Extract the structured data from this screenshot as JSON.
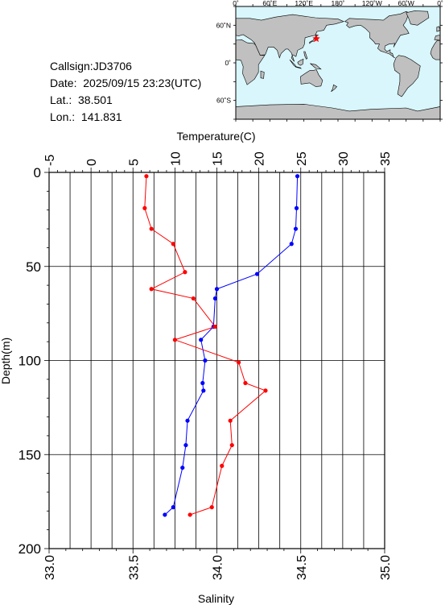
{
  "station": {
    "callsign_text": "Callsign:JD3706",
    "date_text": "Date:  2025/09/15 23:23(UTC)",
    "lat_text": "Lat.:  38.501",
    "lon_text": "Lon.:  141.831"
  },
  "map": {
    "lon_tick_labels": [
      "0˚",
      "60˚E",
      "120˚E",
      "180˚",
      "120˚W",
      "60˚W",
      "0˚"
    ],
    "lat_tick_labels": [
      "60˚N",
      "0˚",
      "60˚S"
    ],
    "marker_lat": 38.501,
    "marker_lon": 141.831,
    "ocean_color": "#d8f6fb",
    "land_color": "#c0c0c0",
    "marker_color": "#ff0000"
  },
  "chart_data": {
    "type": "line",
    "orientation": "depth-profile",
    "top_axis_label": "Temperature(C)",
    "bottom_axis_label": "Salinity",
    "left_axis_label": "Depth(m)",
    "temperature_ticks": [
      -5,
      0,
      5,
      10,
      15,
      20,
      25,
      30,
      35
    ],
    "temperature_range": [
      -5,
      35
    ],
    "salinity_ticks": [
      "33.0",
      "33.5",
      "34.0",
      "34.5",
      "35.0"
    ],
    "salinity_range": [
      33.0,
      35.0
    ],
    "depth_ticks": [
      0,
      50,
      100,
      150,
      200
    ],
    "depth_range": [
      0,
      200
    ],
    "grid": true,
    "series": [
      {
        "name": "Temperature",
        "axis": "top",
        "color": "#0000ff",
        "points": [
          {
            "depth": 2,
            "value": 24.6
          },
          {
            "depth": 19,
            "value": 24.5
          },
          {
            "depth": 30,
            "value": 24.4
          },
          {
            "depth": 38,
            "value": 23.9
          },
          {
            "depth": 54,
            "value": 19.8
          },
          {
            "depth": 62,
            "value": 15.0
          },
          {
            "depth": 67,
            "value": 14.8
          },
          {
            "depth": 82,
            "value": 14.6
          },
          {
            "depth": 89,
            "value": 13.1
          },
          {
            "depth": 100,
            "value": 13.6
          },
          {
            "depth": 112,
            "value": 13.3
          },
          {
            "depth": 116,
            "value": 13.4
          },
          {
            "depth": 132,
            "value": 11.5
          },
          {
            "depth": 145,
            "value": 11.3
          },
          {
            "depth": 157,
            "value": 10.9
          },
          {
            "depth": 178,
            "value": 9.8
          },
          {
            "depth": 182,
            "value": 8.8
          }
        ]
      },
      {
        "name": "Salinity",
        "axis": "bottom",
        "color": "#ff0000",
        "points": [
          {
            "depth": 2,
            "value": 33.58
          },
          {
            "depth": 19,
            "value": 33.57
          },
          {
            "depth": 30,
            "value": 33.61
          },
          {
            "depth": 38,
            "value": 33.74
          },
          {
            "depth": 53,
            "value": 33.81
          },
          {
            "depth": 62,
            "value": 33.61
          },
          {
            "depth": 67,
            "value": 33.86
          },
          {
            "depth": 82,
            "value": 33.99
          },
          {
            "depth": 89,
            "value": 33.75
          },
          {
            "depth": 101,
            "value": 34.13
          },
          {
            "depth": 112,
            "value": 34.17
          },
          {
            "depth": 116,
            "value": 34.29
          },
          {
            "depth": 132,
            "value": 34.08
          },
          {
            "depth": 145,
            "value": 34.09
          },
          {
            "depth": 156,
            "value": 34.03
          },
          {
            "depth": 178,
            "value": 33.97
          },
          {
            "depth": 182,
            "value": 33.84
          }
        ]
      }
    ]
  }
}
